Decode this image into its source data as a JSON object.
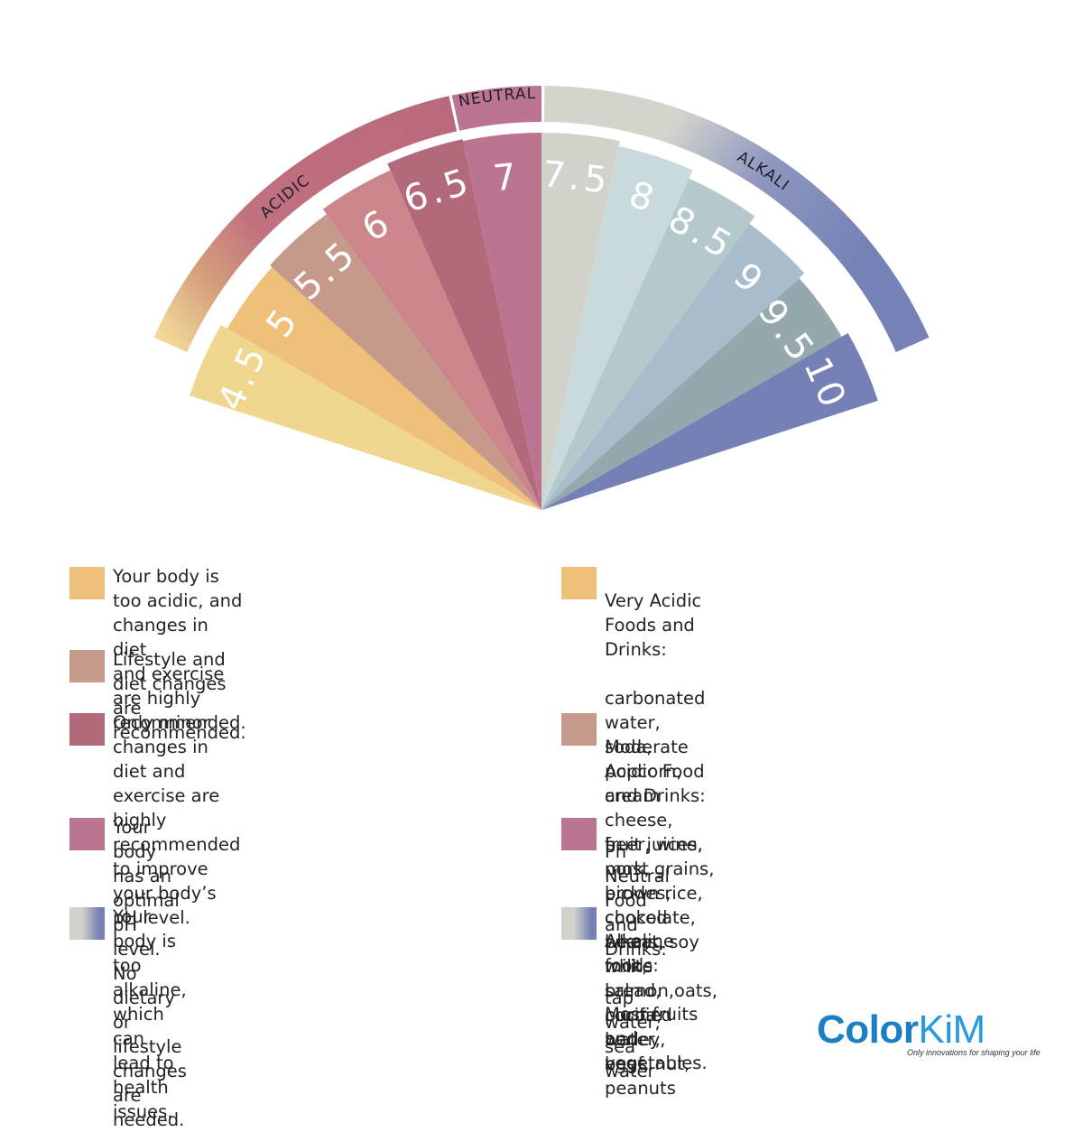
{
  "scale": {
    "bands": [
      {
        "label": "ACIDIC",
        "colors": [
          "#f2d999",
          "#d5a07c",
          "#c0707e",
          "#b9697b"
        ]
      },
      {
        "label": "NEUTRAL",
        "colors": [
          "#bc7591"
        ]
      },
      {
        "label": "ALKALI",
        "colors": [
          "#d3d5cc",
          "#d3d5cc",
          "#8e97bf",
          "#7582b5"
        ]
      }
    ],
    "segments": [
      {
        "ph": "4.5",
        "color": "#f0d78f"
      },
      {
        "ph": "5",
        "color": "#efc07a"
      },
      {
        "ph": "5.5",
        "color": "#c69a8b"
      },
      {
        "ph": "6",
        "color": "#cb868c"
      },
      {
        "ph": "6.5",
        "color": "#b2697a"
      },
      {
        "ph": "7",
        "color": "#bb7591"
      },
      {
        "ph": "7.5",
        "color": "#d1d3cb"
      },
      {
        "ph": "8",
        "color": "#c9dadd"
      },
      {
        "ph": "8.5",
        "color": "#b3c9cb"
      },
      {
        "ph": "9",
        "color": "#a8bccb"
      },
      {
        "ph": "9.5",
        "color": "#95a8ae"
      },
      {
        "ph": "10",
        "color": "#7580b5"
      }
    ]
  },
  "legend_left": [
    {
      "color": "#efc07a",
      "text": "Your body is too acidic, and changes in diet\nand exercise are highly recommended."
    },
    {
      "color": "#c69a8b",
      "text": "Lifestyle and diet changes are recommended."
    },
    {
      "color": "#b2697a",
      "text": "Only minor changes in diet and exercise are\nhighly recommended to improve your body’s\npH level."
    },
    {
      "color": "#bb7591",
      "text": "Your body has an optimal pH level. No dietary\nor lifestyle changes are needed."
    },
    {
      "gradient": [
        "#d1d3cb",
        "#7580b5"
      ],
      "text": "Your body is too alkaline, which can lead to\nhealth issues."
    }
  ],
  "legend_right": [
    {
      "color": "#efc07a",
      "title": "Very Acidic Foods and Drinks:",
      "body": "carbonated water, soda, popcorn, cream\ncheese, beer, wine, pork, pickles, chocolate,\nwheat, white bread, purified water, beef, nut,\npeanuts"
    },
    {
      "color": "#c69a8b",
      "title": "Moderate Acidic Food and Drinks:",
      "body": "fruit juices, most grains, brown rice, cooked\nbeans, soy milk, salmon,oats, cocoa, barley,\neggs"
    },
    {
      "color": "#bb7591",
      "title": "Ph Neutral Food and Drinks:",
      "body": "tap water, sea water"
    },
    {
      "gradient": [
        "#d1d3cb",
        "#7580b5"
      ],
      "title": "Alkaline foods:",
      "body": "Most fruits and vegetables."
    }
  ],
  "logo": {
    "word_main": "Color",
    "word_accent": "KiM",
    "tagline": "Only innovations for shaping your life"
  }
}
